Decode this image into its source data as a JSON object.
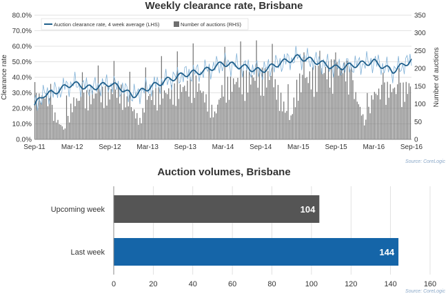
{
  "colors": {
    "line": "#1f5f8b",
    "bars": "#6f6f6f",
    "upcoming_bar": "#555555",
    "last_bar": "#1565a8",
    "grid": "#d9d9d9",
    "axis_text": "#333333"
  },
  "chart_data": [
    {
      "type": "line",
      "title": "Weekly clearance rate, Brisbane",
      "ylabel_left": "Clearance rate",
      "ylabel_right": "Number of auctions",
      "y_left_ticks": [
        "0.0%",
        "10.0%",
        "20.0%",
        "30.0%",
        "40.0%",
        "50.0%",
        "60.0%",
        "70.0%",
        "80.0%"
      ],
      "y_right_ticks": [
        "0",
        "50",
        "100",
        "150",
        "200",
        "250",
        "300",
        "350"
      ],
      "ylim_left": [
        0,
        80
      ],
      "ylim_right": [
        0,
        350
      ],
      "x_ticks": [
        "Sep-11",
        "Mar-12",
        "Sep-12",
        "Mar-13",
        "Sep-13",
        "Mar-14",
        "Sep-14",
        "Mar-15",
        "Sep-15",
        "Mar-16",
        "Sep-16"
      ],
      "legend": {
        "position": "top-left",
        "line_label": "Auction clearance rate, 4 week average (LHS)",
        "bar_label": "Number of auctions (RHS)"
      },
      "grid": true,
      "series": [
        {
          "name": "Auction clearance rate, 4 week average (LHS)",
          "axis": "left",
          "type": "line",
          "anchors_semester_index": [
            0,
            0.25,
            0.5,
            1,
            1.5,
            2,
            2.3,
            2.6,
            3,
            3.5,
            4,
            4.5,
            5,
            5.5,
            6,
            6.5,
            7,
            7.5,
            8,
            8.5,
            9,
            9.5,
            10
          ],
          "anchors_value_pct": [
            22,
            29,
            30,
            36,
            33,
            36,
            33,
            28,
            33,
            38,
            42,
            44,
            49,
            47,
            44,
            49,
            53,
            50,
            46,
            48,
            50,
            44,
            51
          ]
        },
        {
          "name": "Number of auctions (RHS)",
          "axis": "right",
          "type": "bar",
          "anchors_semester_index": [
            0,
            0.3,
            0.6,
            0.8,
            1,
            1.4,
            1.8,
            2.3,
            2.8,
            3,
            3.4,
            3.8,
            4.3,
            4.8,
            5,
            5.4,
            5.8,
            6.3,
            6.8,
            7,
            7.4,
            7.8,
            8.3,
            8.8,
            9,
            9.4,
            9.8,
            10
          ],
          "anchors_value": [
            130,
            140,
            60,
            30,
            120,
            140,
            150,
            155,
            60,
            140,
            150,
            160,
            185,
            80,
            170,
            190,
            200,
            205,
            60,
            185,
            205,
            225,
            230,
            50,
            145,
            165,
            160,
            175
          ]
        }
      ]
    },
    {
      "type": "bar",
      "orientation": "horizontal",
      "title": "Auction volumes, Brisbane",
      "categories": [
        "Upcoming week",
        "Last week"
      ],
      "values": [
        104,
        144
      ],
      "xlim": [
        0,
        160
      ],
      "x_ticks": [
        "0",
        "20",
        "40",
        "60",
        "80",
        "100",
        "120",
        "140",
        "160"
      ],
      "grid": true
    }
  ],
  "sources": [
    "Source: CoreLogic",
    "Source: CoreLogic"
  ]
}
